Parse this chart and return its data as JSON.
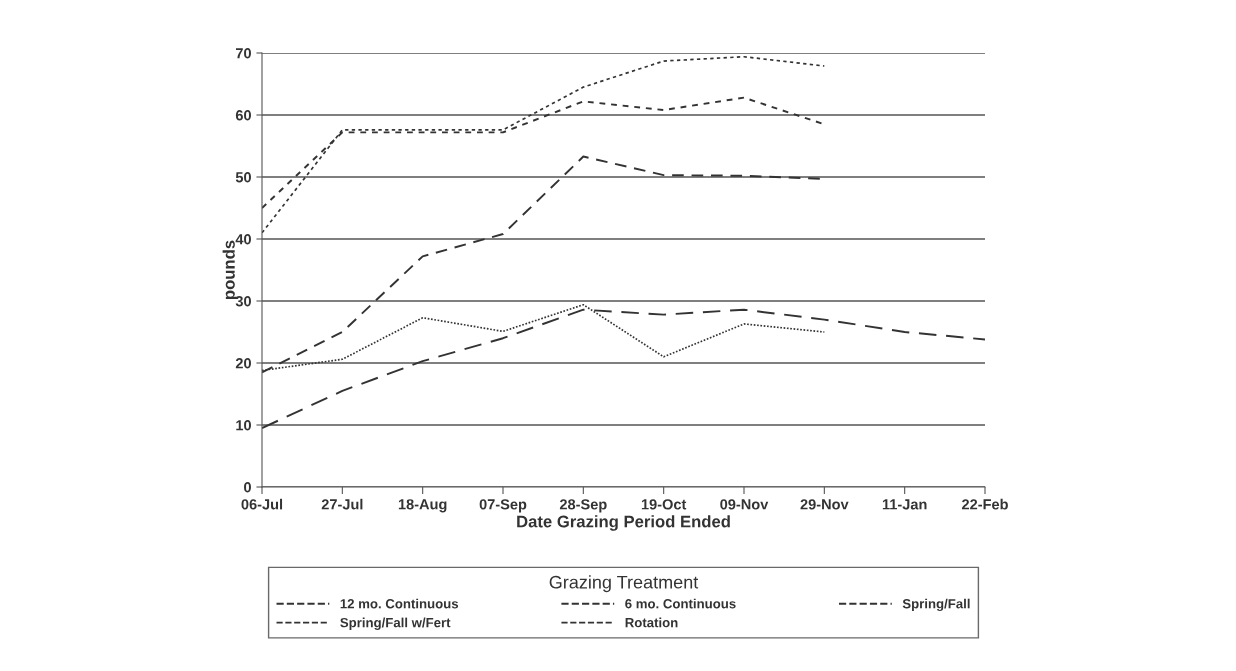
{
  "chart_data": {
    "type": "line",
    "xlabel": "Date Grazing Period Ended",
    "ylabel": "pounds",
    "legend_title": "Grazing Treatment",
    "categories": [
      "06-Jul",
      "27-Jul",
      "18-Aug",
      "07-Sep",
      "28-Sep",
      "19-Oct",
      "09-Nov",
      "29-Nov",
      "11-Jan",
      "22-Feb"
    ],
    "ylim": [
      0,
      70
    ],
    "yticks": [
      0,
      10,
      20,
      30,
      40,
      50,
      60,
      70
    ],
    "grid": "y",
    "legend": "bottom",
    "marker": "none",
    "series": [
      {
        "name": "12 mo. Continuous",
        "color": "#333333",
        "line_style": "dashed",
        "values": [
          9.5,
          15.5,
          20.3,
          24,
          28.6,
          27.8,
          28.6,
          27,
          25,
          23.8
        ]
      },
      {
        "name": "6 mo. Continuous",
        "color": "#333333",
        "line_style": "dashed",
        "values": [
          18.5,
          25,
          37.2,
          40.8,
          53.3,
          50.3,
          50.2,
          49.7,
          null,
          null
        ]
      },
      {
        "name": "Spring/Fall",
        "color": "#333333",
        "line_style": "dashed",
        "values": [
          45,
          57.2,
          57.2,
          57.2,
          62.2,
          60.8,
          62.8,
          58.5,
          null,
          null
        ]
      },
      {
        "name": "Spring/Fall w/Fert",
        "color": "#333333",
        "line_style": "dotted",
        "values": [
          41,
          57.6,
          57.6,
          57.6,
          64.5,
          68.7,
          69.4,
          67.9,
          null,
          null
        ]
      },
      {
        "name": "Rotation",
        "color": "#333333",
        "line_style": "dotted",
        "values": [
          18.8,
          20.6,
          27.3,
          25.1,
          29.4,
          21,
          26.3,
          25,
          null,
          null
        ]
      }
    ]
  }
}
